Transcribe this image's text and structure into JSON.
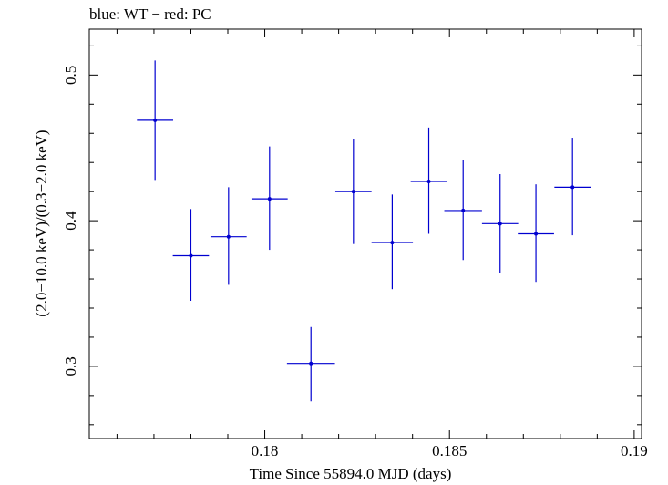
{
  "chart_data": {
    "type": "scatter",
    "title": "blue: WT − red: PC",
    "xlabel": "Time Since 55894.0 MJD (days)",
    "ylabel": "(2.0−10.0 keV)/(0.3−2.0 keV)",
    "xlim": [
      0.17525,
      0.1902
    ],
    "ylim": [
      0.2505,
      0.5315
    ],
    "x_ticks": [
      0.18,
      0.185,
      0.19
    ],
    "x_tick_labels": [
      "0.18",
      "0.185",
      "0.19"
    ],
    "y_ticks": [
      0.3,
      0.4,
      0.5
    ],
    "y_tick_labels": [
      "0.3",
      "0.4",
      "0.5"
    ],
    "grid": false,
    "series": [
      {
        "name": "WT",
        "color": "#0000d0",
        "points": [
          {
            "x": 0.17703,
            "xerr": 0.00049,
            "y": 0.469,
            "yerr_lo": 0.041,
            "yerr_hi": 0.041
          },
          {
            "x": 0.178,
            "xerr": 0.00049,
            "y": 0.376,
            "yerr_lo": 0.031,
            "yerr_hi": 0.032
          },
          {
            "x": 0.17902,
            "xerr": 0.00049,
            "y": 0.389,
            "yerr_lo": 0.033,
            "yerr_hi": 0.034
          },
          {
            "x": 0.18013,
            "xerr": 0.00049,
            "y": 0.415,
            "yerr_lo": 0.035,
            "yerr_hi": 0.036
          },
          {
            "x": 0.18125,
            "xerr": 0.00065,
            "y": 0.302,
            "yerr_lo": 0.026,
            "yerr_hi": 0.025
          },
          {
            "x": 0.1824,
            "xerr": 0.00049,
            "y": 0.42,
            "yerr_lo": 0.036,
            "yerr_hi": 0.036
          },
          {
            "x": 0.18345,
            "xerr": 0.00056,
            "y": 0.385,
            "yerr_lo": 0.032,
            "yerr_hi": 0.033
          },
          {
            "x": 0.18444,
            "xerr": 0.00049,
            "y": 0.427,
            "yerr_lo": 0.036,
            "yerr_hi": 0.037
          },
          {
            "x": 0.18537,
            "xerr": 0.00051,
            "y": 0.407,
            "yerr_lo": 0.034,
            "yerr_hi": 0.035
          },
          {
            "x": 0.18637,
            "xerr": 0.00049,
            "y": 0.398,
            "yerr_lo": 0.034,
            "yerr_hi": 0.034
          },
          {
            "x": 0.18734,
            "xerr": 0.00049,
            "y": 0.391,
            "yerr_lo": 0.033,
            "yerr_hi": 0.034
          },
          {
            "x": 0.18833,
            "xerr": 0.00049,
            "y": 0.423,
            "yerr_lo": 0.033,
            "yerr_hi": 0.034
          }
        ]
      }
    ]
  }
}
